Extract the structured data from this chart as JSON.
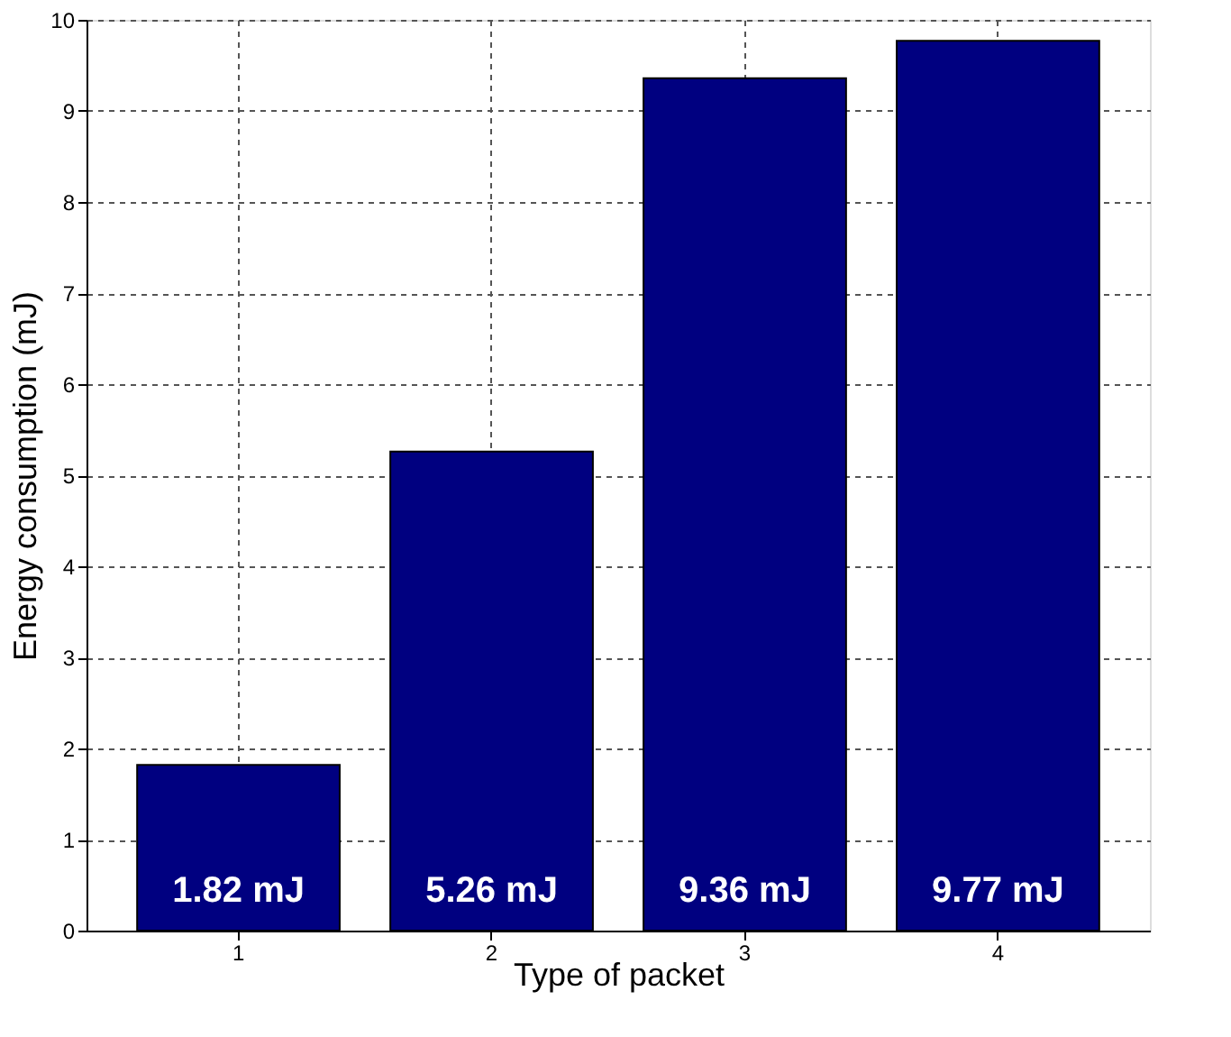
{
  "chart_data": {
    "type": "bar",
    "xlabel": "Type of packet",
    "ylabel": "Energy consumption (mJ)",
    "categories": [
      "1",
      "2",
      "3",
      "4"
    ],
    "values": [
      1.82,
      5.26,
      9.36,
      9.77
    ],
    "value_labels": [
      "1.82 mJ",
      "5.26 mJ",
      "9.36 mJ",
      "9.77 mJ"
    ],
    "color": "#000080",
    "ylim": [
      0,
      10
    ],
    "yticks": [
      0,
      1,
      2,
      3,
      4,
      5,
      6,
      7,
      8,
      9,
      10
    ],
    "grid": true
  }
}
